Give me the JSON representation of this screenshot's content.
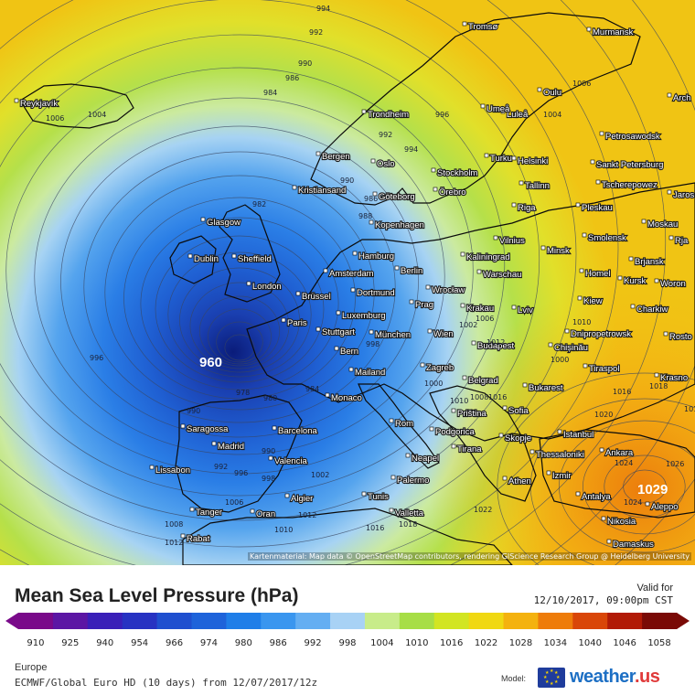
{
  "map": {
    "credit": "Kartenmaterial: Map data © OpenStreetMap contributors, rendering GIScience Research Group @ Heidelberg University",
    "low_center_value": "960",
    "high_center_value": "1029",
    "colors": {
      "sea": "#0e1a2e",
      "land_outline": "#0b0b0b",
      "isobar": "#3a4660",
      "city_label": "#ffffff"
    },
    "cities": [
      {
        "name": "Tromsø"
      },
      {
        "name": "Murmansk"
      },
      {
        "name": "Reykjavík"
      },
      {
        "name": "Luleå"
      },
      {
        "name": "Oulu"
      },
      {
        "name": "Trondheim"
      },
      {
        "name": "Umeå"
      },
      {
        "name": "Arch"
      },
      {
        "name": "Petrosawodsk"
      },
      {
        "name": "Bergen"
      },
      {
        "name": "Oslo"
      },
      {
        "name": "Turku"
      },
      {
        "name": "Helsinki"
      },
      {
        "name": "Sankt Petersburg"
      },
      {
        "name": "Stockholm"
      },
      {
        "name": "Kristiansand"
      },
      {
        "name": "Göteborg"
      },
      {
        "name": "Örebro"
      },
      {
        "name": "Tallinn"
      },
      {
        "name": "Tscherepowez"
      },
      {
        "name": "Jaros"
      },
      {
        "name": "Riga"
      },
      {
        "name": "Pleskau"
      },
      {
        "name": "Glasgow"
      },
      {
        "name": "Kopenhagen"
      },
      {
        "name": "Moskau"
      },
      {
        "name": "Vilnius"
      },
      {
        "name": "Smolensk"
      },
      {
        "name": "Rja"
      },
      {
        "name": "Dublin"
      },
      {
        "name": "Sheffield"
      },
      {
        "name": "Hamburg"
      },
      {
        "name": "Kaliningrad"
      },
      {
        "name": "Minsk"
      },
      {
        "name": "Brjansk"
      },
      {
        "name": "Amsterdam"
      },
      {
        "name": "Berlin"
      },
      {
        "name": "Warschau"
      },
      {
        "name": "Homel"
      },
      {
        "name": "London"
      },
      {
        "name": "Brüssel"
      },
      {
        "name": "Dortmund"
      },
      {
        "name": "Wrocław"
      },
      {
        "name": "Kursk"
      },
      {
        "name": "Woron"
      },
      {
        "name": "Prag"
      },
      {
        "name": "Krakau"
      },
      {
        "name": "Kiew"
      },
      {
        "name": "Luxemburg"
      },
      {
        "name": "Lviv"
      },
      {
        "name": "Charkiw"
      },
      {
        "name": "Paris"
      },
      {
        "name": "Stuttgart"
      },
      {
        "name": "München"
      },
      {
        "name": "Wien"
      },
      {
        "name": "Dnipropetrowsk"
      },
      {
        "name": "Rosto"
      },
      {
        "name": "Chișinău"
      },
      {
        "name": "Budapest"
      },
      {
        "name": "Bern"
      },
      {
        "name": "Zagreb"
      },
      {
        "name": "Tiraspol"
      },
      {
        "name": "Mailand"
      },
      {
        "name": "Krasno"
      },
      {
        "name": "Belgrad"
      },
      {
        "name": "Bukarest"
      },
      {
        "name": "Monaco"
      },
      {
        "name": "Priština"
      },
      {
        "name": "Sofia"
      },
      {
        "name": "Rom"
      },
      {
        "name": "Podgorica"
      },
      {
        "name": "Saragossa"
      },
      {
        "name": "Barcelona"
      },
      {
        "name": "Skopje"
      },
      {
        "name": "Istanbul"
      },
      {
        "name": "Madrid"
      },
      {
        "name": "Tirana"
      },
      {
        "name": "Thessaloniki"
      },
      {
        "name": "Ankara"
      },
      {
        "name": "Neapel"
      },
      {
        "name": "Lissabon"
      },
      {
        "name": "Valencia"
      },
      {
        "name": "Izmir"
      },
      {
        "name": "Athen"
      },
      {
        "name": "Palermo"
      },
      {
        "name": "Antalya"
      },
      {
        "name": "Aleppo"
      },
      {
        "name": "Algier"
      },
      {
        "name": "Tunis"
      },
      {
        "name": "Tanger"
      },
      {
        "name": "Oran"
      },
      {
        "name": "Valletta"
      },
      {
        "name": "Nikosia"
      },
      {
        "name": "Rabat"
      },
      {
        "name": "Damaskus"
      }
    ],
    "isobar_labels": [
      "994",
      "992",
      "990",
      "986",
      "984",
      "982",
      "1006",
      "1004",
      "1004",
      "996",
      "1006",
      "992",
      "994",
      "990",
      "986",
      "988",
      "996",
      "1010",
      "1006",
      "1002",
      "998",
      "1016",
      "1020",
      "1018",
      "1000",
      "1016",
      "1012",
      "990",
      "978",
      "980",
      "984",
      "990",
      "992",
      "996",
      "998",
      "1002",
      "1006",
      "1010",
      "1012",
      "1008",
      "1012",
      "1016",
      "1018",
      "1024",
      "1024",
      "1026",
      "1022",
      "1008",
      "1010",
      "1016",
      "1000"
    ]
  },
  "legend": {
    "title": "Mean Sea Level Pressure (hPa)",
    "valid_label": "Valid for",
    "valid_time": "12/10/2017, 09:00pm CST",
    "ticks": [
      "910",
      "925",
      "940",
      "954",
      "966",
      "974",
      "980",
      "986",
      "992",
      "998",
      "1004",
      "1010",
      "1016",
      "1022",
      "1028",
      "1034",
      "1040",
      "1046",
      "1058"
    ],
    "colors": [
      "#7a0a8a",
      "#5c16a4",
      "#3a1fb8",
      "#2732c2",
      "#1f4fcf",
      "#1e63da",
      "#1f7ee8",
      "#3a96ef",
      "#64aef2",
      "#a8d2f5",
      "#c8ec8a",
      "#a7de46",
      "#d2e522",
      "#f0d812",
      "#f4b20e",
      "#ee7c0a",
      "#d94608",
      "#b11a06",
      "#7a0a06"
    ]
  },
  "footer": {
    "region": "Europe",
    "model_line": "ECMWF/Global Euro HD (10 days) from 12/07/2017/12z",
    "model_label": "Model:",
    "brand": "weather",
    "brand_suffix": ".us"
  }
}
